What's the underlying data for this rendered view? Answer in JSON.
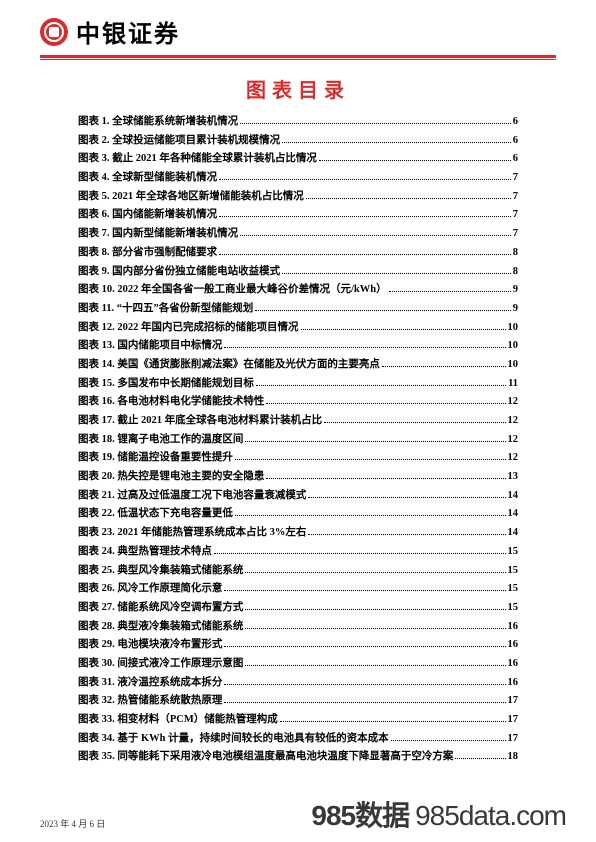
{
  "brand_name": "中银证券",
  "page_title": "图表目录",
  "footer_date": "2023 年 4 月 6 日",
  "watermark_main": "985数据",
  "watermark_sub": "985data.com",
  "colors": {
    "accent": "#d32f2f",
    "text": "#000000",
    "background": "#ffffff"
  },
  "toc": [
    {
      "label": "图表 1. 全球储能系统新增装机情况",
      "page": "6"
    },
    {
      "label": "图表 2. 全球投运储能项目累计装机规模情况",
      "page": "6"
    },
    {
      "label": "图表 3. 截止 2021 年各种储能全球累计装机占比情况",
      "page": "6"
    },
    {
      "label": "图表 4. 全球新型储能装机情况",
      "page": "7"
    },
    {
      "label": "图表 5. 2021 年全球各地区新增储能装机占比情况",
      "page": "7"
    },
    {
      "label": "图表 6. 国内储能新增装机情况",
      "page": "7"
    },
    {
      "label": "图表 7. 国内新型储能新增装机情况",
      "page": "7"
    },
    {
      "label": "图表 8. 部分省市强制配储要求",
      "page": "8"
    },
    {
      "label": "图表 9. 国内部分省份独立储能电站收益模式",
      "page": "8"
    },
    {
      "label": "图表 10. 2022 年全国各省一般工商业最大峰谷价差情况（元/kWh）",
      "page": "9"
    },
    {
      "label": "图表 11. “十四五”各省份新型储能规划",
      "page": "9"
    },
    {
      "label": "图表 12. 2022 年国内已完成招标的储能项目情况",
      "page": "10"
    },
    {
      "label": "图表 13. 国内储能项目中标情况",
      "page": "10"
    },
    {
      "label": "图表 14. 美国《通货膨胀削减法案》在储能及光伏方面的主要亮点",
      "page": "10"
    },
    {
      "label": "图表 15. 多国发布中长期储能规划目标",
      "page": "11"
    },
    {
      "label": "图表 16. 各电池材料电化学储能技术特性",
      "page": "12"
    },
    {
      "label": "图表 17. 截止 2021 年底全球各电池材料累计装机占比",
      "page": "12"
    },
    {
      "label": "图表 18. 锂离子电池工作的温度区间",
      "page": "12"
    },
    {
      "label": "图表 19. 储能温控设备重要性提升",
      "page": "12"
    },
    {
      "label": "图表 20. 热失控是锂电池主要的安全隐患",
      "page": "13"
    },
    {
      "label": "图表 21. 过高及过低温度工况下电池容量衰减模式",
      "page": "14"
    },
    {
      "label": "图表 22. 低温状态下充电容量更低",
      "page": "14"
    },
    {
      "label": "图表 23. 2021 年储能热管理系统成本占比 3%左右",
      "page": "14"
    },
    {
      "label": "图表 24. 典型热管理技术特点",
      "page": "15"
    },
    {
      "label": "图表 25. 典型风冷集装箱式储能系统",
      "page": "15"
    },
    {
      "label": "图表 26. 风冷工作原理简化示意",
      "page": "15"
    },
    {
      "label": "图表 27. 储能系统风冷空调布置方式",
      "page": "15"
    },
    {
      "label": "图表 28. 典型液冷集装箱式储能系统",
      "page": "16"
    },
    {
      "label": "图表 29. 电池模块液冷布置形式",
      "page": "16"
    },
    {
      "label": "图表 30. 间接式液冷工作原理示意图",
      "page": "16"
    },
    {
      "label": "图表 31. 液冷温控系统成本拆分",
      "page": "16"
    },
    {
      "label": "图表 32. 热管储能系统散热原理",
      "page": "17"
    },
    {
      "label": "图表 33. 相变材料（PCM）储能热管理构成",
      "page": "17"
    },
    {
      "label": "图表 34. 基于 KWh 计量，持续时间较长的电池具有较低的资本成本",
      "page": "17"
    },
    {
      "label": "图表 35. 同等能耗下采用液冷电池模组温度最高电池块温度下降显著高于空冷方案",
      "page": "18"
    }
  ]
}
